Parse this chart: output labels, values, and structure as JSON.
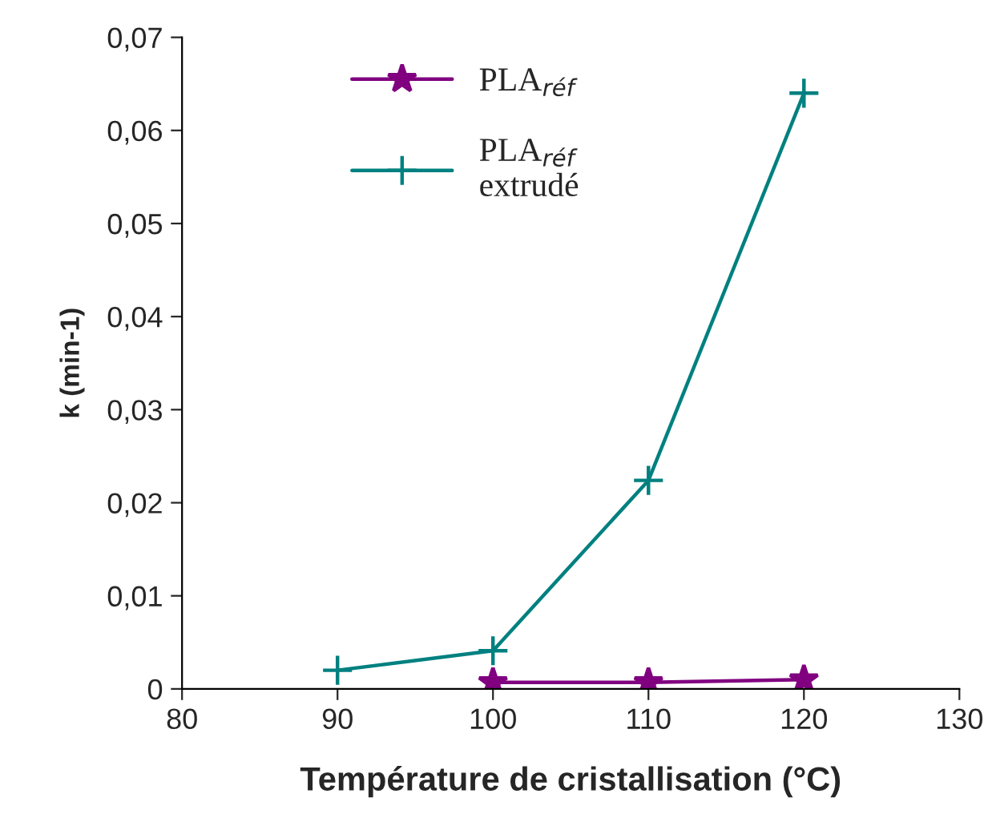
{
  "chart_data": {
    "type": "line",
    "xlabel": "Température de cristallisation (°C)",
    "ylabel": "k (min-1)",
    "x": [
      90,
      100,
      110,
      120
    ],
    "series": [
      {
        "name": "PLA$_{réf}$",
        "color": "#800080",
        "marker": "star",
        "values": [
          null,
          0.0007,
          0.0007,
          0.001
        ]
      },
      {
        "name": "PLA$_{réf}$\nextrudé",
        "color": "#008080",
        "marker": "cross",
        "values": [
          0.002,
          0.0041,
          0.0224,
          0.064
        ]
      }
    ],
    "xlim": [
      80,
      130
    ],
    "xticks": [
      80,
      90,
      100,
      110,
      120,
      130
    ],
    "ylim": [
      0,
      0.07
    ],
    "yticks": [
      {
        "value": 0,
        "label": "0"
      },
      {
        "value": 0.01,
        "label": "0,01"
      },
      {
        "value": 0.02,
        "label": "0,02"
      },
      {
        "value": 0.03,
        "label": "0,03"
      },
      {
        "value": 0.04,
        "label": "0,04"
      },
      {
        "value": 0.05,
        "label": "0,05"
      },
      {
        "value": 0.06,
        "label": "0,06"
      },
      {
        "value": 0.07,
        "label": "0,07"
      }
    ],
    "grid": false,
    "legend": "upper left",
    "line_style": "solid"
  }
}
